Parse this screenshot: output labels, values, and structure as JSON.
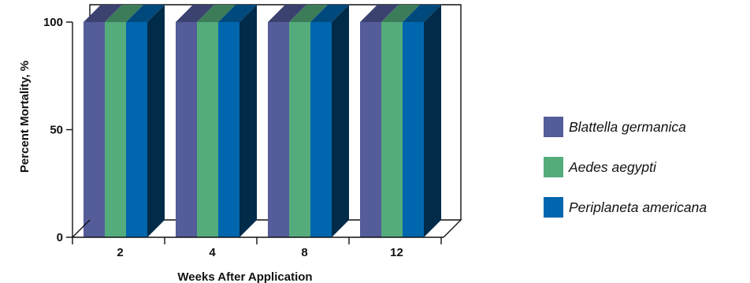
{
  "chart_data": {
    "type": "bar",
    "style": "3d-clustered",
    "title": "",
    "xlabel": "Weeks After Application",
    "ylabel": "Percent Mortality, %",
    "ylim": [
      0,
      100
    ],
    "yticks": [
      "0",
      "50",
      "100"
    ],
    "categories": [
      "2",
      "4",
      "8",
      "12"
    ],
    "series": [
      {
        "name": "Blattella germanica",
        "values": [
          100,
          100,
          100,
          100
        ],
        "color": "#545c9a"
      },
      {
        "name": "Aedes aegypti",
        "values": [
          100,
          100,
          100,
          100
        ],
        "color": "#54ac7c"
      },
      {
        "name": "Periplaneta americana",
        "values": [
          100,
          100,
          100,
          100
        ],
        "color": "#0066ae"
      }
    ],
    "legend_position": "right",
    "grid": false
  }
}
